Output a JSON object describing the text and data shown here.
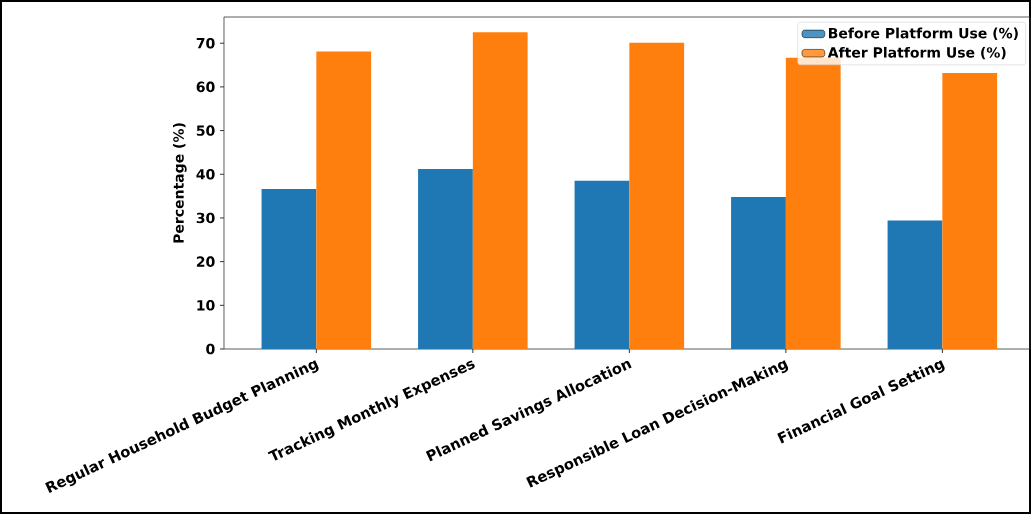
{
  "chart_data": {
    "type": "bar",
    "ylabel": "Percentage (%)",
    "categories": [
      "Regular Household Budget Planning",
      "Tracking Monthly Expenses",
      "Planned Savings Allocation",
      "Responsible Loan Decision-Making",
      "Financial Goal Setting"
    ],
    "series": [
      {
        "name": "Before Platform Use (%)",
        "color": "#1f77b4",
        "values": [
          36.6,
          41.2,
          38.5,
          34.8,
          29.4
        ]
      },
      {
        "name": "After Platform Use (%)",
        "color": "#ff7f0e",
        "values": [
          68.1,
          72.5,
          70.1,
          66.7,
          63.2
        ]
      }
    ],
    "ylim": [
      0,
      76
    ],
    "yticks": [
      0,
      10,
      20,
      30,
      40,
      50,
      60,
      70
    ],
    "legend": "top right",
    "grid": false
  }
}
